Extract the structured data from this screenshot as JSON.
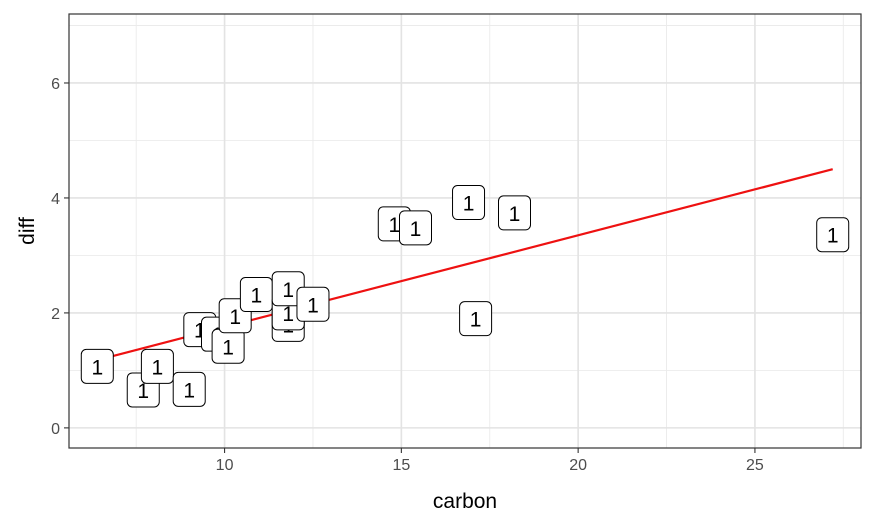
{
  "chart_data": {
    "type": "scatter",
    "title": "",
    "xlabel": "carbon",
    "ylabel": "diff",
    "xlim": [
      5.6,
      28.0
    ],
    "ylim": [
      -0.35,
      7.2
    ],
    "x_ticks": [
      10,
      15,
      20,
      25
    ],
    "x_tick_labels": [
      "10",
      "15",
      "20",
      "25"
    ],
    "y_ticks": [
      0,
      2,
      4,
      6
    ],
    "y_tick_labels": [
      "0",
      "2",
      "4",
      "6"
    ],
    "x_minor_ticks": [
      7.5,
      12.5,
      17.5,
      22.5,
      27.5
    ],
    "y_minor_ticks": [
      1,
      3,
      5,
      7
    ],
    "grid": true,
    "theme": "bw",
    "point_label": "1",
    "points": [
      {
        "x": 6.4,
        "y": 1.07
      },
      {
        "x": 7.7,
        "y": 0.66
      },
      {
        "x": 8.1,
        "y": 1.07
      },
      {
        "x": 9.0,
        "y": 0.67
      },
      {
        "x": 9.3,
        "y": 1.71
      },
      {
        "x": 9.8,
        "y": 1.63
      },
      {
        "x": 10.1,
        "y": 1.42
      },
      {
        "x": 10.3,
        "y": 1.95
      },
      {
        "x": 10.9,
        "y": 2.32
      },
      {
        "x": 11.8,
        "y": 1.8
      },
      {
        "x": 11.8,
        "y": 2.0
      },
      {
        "x": 11.8,
        "y": 2.42
      },
      {
        "x": 12.5,
        "y": 2.15
      },
      {
        "x": 14.8,
        "y": 3.55
      },
      {
        "x": 15.4,
        "y": 3.48
      },
      {
        "x": 16.9,
        "y": 3.92
      },
      {
        "x": 17.1,
        "y": 1.9
      },
      {
        "x": 18.2,
        "y": 3.74
      },
      {
        "x": 27.2,
        "y": 3.36
      }
    ],
    "trend_line": {
      "color": "#ee1111",
      "x": [
        6.4,
        27.2
      ],
      "y": [
        1.18,
        4.5
      ]
    }
  }
}
